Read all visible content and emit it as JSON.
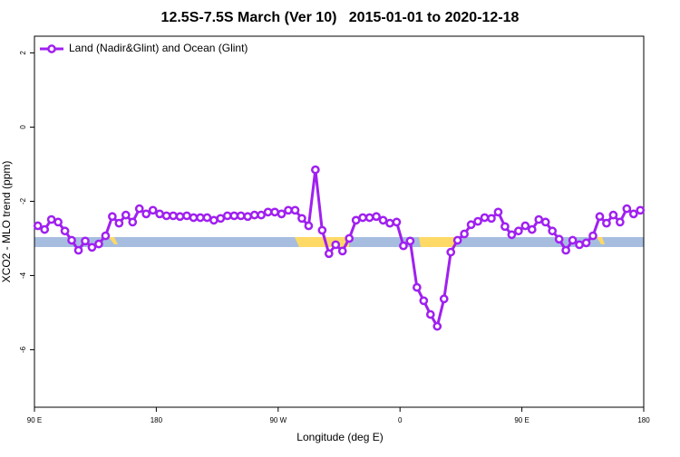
{
  "chart_data": {
    "type": "line",
    "title": "12.5S-7.5S March (Ver 10)   2015-01-01 to 2020-12-18",
    "x_label": "Longitude (deg E)",
    "y_label": "XCO2 - MLO trend (ppm)",
    "x": [
      92.5,
      97.5,
      102.5,
      107.5,
      112.5,
      117.5,
      122.5,
      127.5,
      132.5,
      137.5,
      142.5,
      147.5,
      152.5,
      157.5,
      162.5,
      167.5,
      172.5,
      177.5,
      182.5,
      187.5,
      192.5,
      197.5,
      202.5,
      207.5,
      212.5,
      217.5,
      222.5,
      227.5,
      232.5,
      237.5,
      242.5,
      247.5,
      252.5,
      257.5,
      262.5,
      267.5,
      272.5,
      277.5,
      282.5,
      287.5,
      292.5,
      297.5,
      302.5,
      307.5,
      312.5,
      317.5,
      322.5,
      327.5,
      332.5,
      337.5,
      342.5,
      347.5,
      352.5,
      357.5,
      362.5,
      367.5,
      372.5,
      377.5,
      382.5,
      387.5,
      392.5,
      397.5,
      402.5,
      407.5,
      412.5,
      417.5,
      422.5,
      427.5,
      432.5,
      437.5,
      442.5,
      447.5,
      452.5,
      457.5,
      462.5,
      467.5,
      472.5,
      477.5,
      482.5,
      487.5,
      492.5,
      497.5,
      502.5,
      507.5,
      512.5,
      517.5,
      522.5,
      527.5,
      532.5,
      537.5
    ],
    "series": [
      {
        "name": "Land (Nadir&Glint) and Ocean (Glint)",
        "color": "#a020f0",
        "values": [
          -2.66,
          -2.76,
          -2.49,
          -2.56,
          -2.8,
          -3.05,
          -3.32,
          -3.07,
          -3.24,
          -3.15,
          -2.93,
          -2.41,
          -2.59,
          -2.37,
          -2.56,
          -2.2,
          -2.34,
          -2.24,
          -2.34,
          -2.39,
          -2.39,
          -2.41,
          -2.39,
          -2.44,
          -2.44,
          -2.44,
          -2.51,
          -2.46,
          -2.39,
          -2.39,
          -2.39,
          -2.41,
          -2.37,
          -2.37,
          -2.29,
          -2.29,
          -2.34,
          -2.24,
          -2.24,
          -2.46,
          -2.66,
          -1.15,
          -2.78,
          -3.41,
          -3.17,
          -3.34,
          -3.0,
          -2.51,
          -2.44,
          -2.44,
          -2.41,
          -2.51,
          -2.59,
          -2.56,
          -3.2,
          -3.07,
          -4.32,
          -4.68,
          -5.05,
          -5.37,
          -4.63,
          -3.37,
          -3.05,
          -2.88,
          -2.63,
          -2.54,
          -2.44,
          -2.46,
          -2.29,
          -2.68,
          -2.9,
          -2.8,
          -2.66,
          -2.76,
          -2.49,
          -2.56,
          -2.8,
          -3.02,
          -3.32,
          -3.05,
          -3.17,
          -3.12,
          -2.93,
          -2.41,
          -2.59,
          -2.37,
          -2.56,
          -2.2,
          -2.34,
          -2.24
        ]
      }
    ],
    "xlim": [
      90,
      540
    ],
    "xticks": [
      {
        "value": 90,
        "label": "90 E"
      },
      180,
      {
        "value": 270,
        "label": "90 W"
      },
      {
        "value": 360,
        "label": "0"
      },
      {
        "value": 450,
        "label": "90 E"
      },
      {
        "value": 540,
        "label": "180"
      }
    ],
    "ylim": [
      -7.55,
      2.45
    ],
    "yticks": [
      2,
      0,
      -2,
      -4,
      -6
    ],
    "legend": "top-left"
  }
}
